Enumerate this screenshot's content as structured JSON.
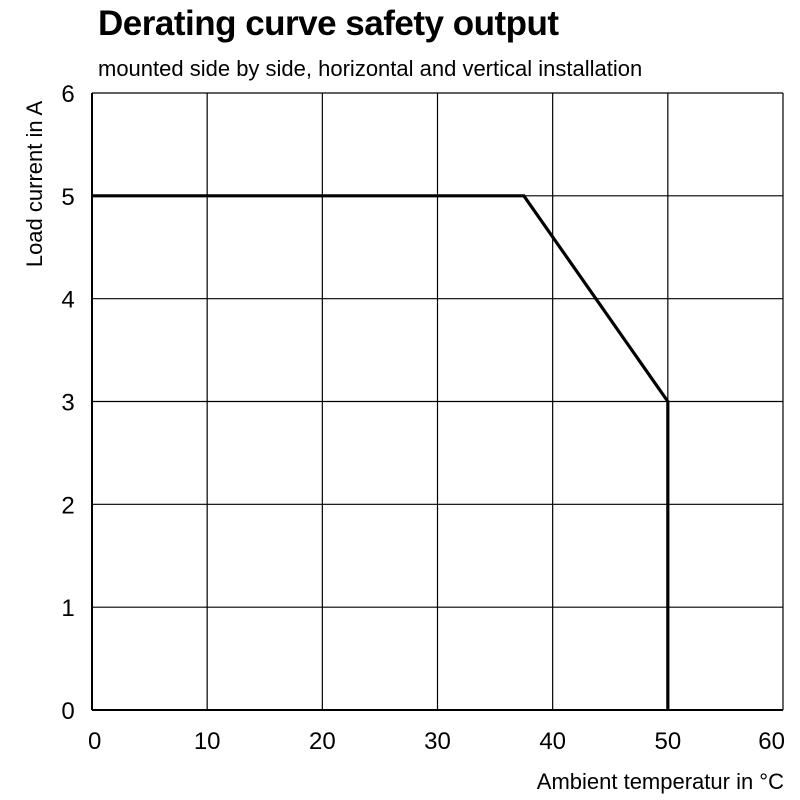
{
  "chart_data": {
    "type": "line",
    "title": "Derating curve safety output",
    "subtitle": "mounted side by side, horizontal and vertical installation",
    "xlabel": "Ambient temperatur in °C",
    "ylabel": "Load  current in A",
    "xlim": [
      0,
      60
    ],
    "ylim": [
      0,
      6
    ],
    "x_ticks": [
      "0",
      "10",
      "20",
      "30",
      "40",
      "50",
      "60"
    ],
    "y_ticks": [
      "0",
      "1",
      "2",
      "3",
      "4",
      "5",
      "6"
    ],
    "grid": true,
    "series": [
      {
        "points": [
          [
            0,
            5
          ],
          [
            37.5,
            5
          ],
          [
            50,
            3
          ],
          [
            50,
            0
          ]
        ]
      }
    ],
    "line_color": "#000000",
    "grid_color": "#000000"
  }
}
